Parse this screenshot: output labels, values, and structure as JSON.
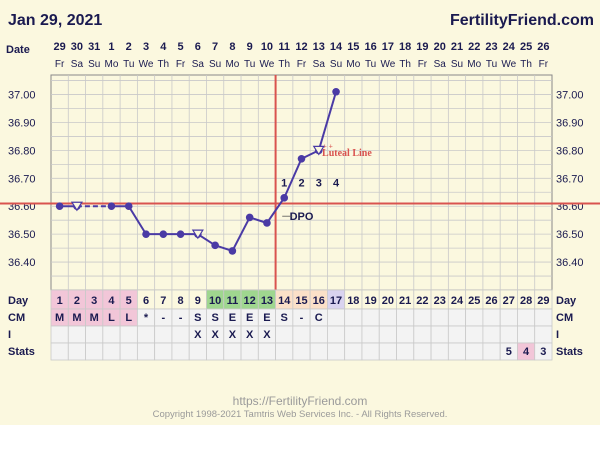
{
  "header": {
    "date": "Jan 29, 2021",
    "brand": "FertilityFriend.com"
  },
  "footer": {
    "url": "https://FertilityFriend.com",
    "copyright": "Copyright 1998-2021 Tamtris Web Services Inc. - All Rights Reserved."
  },
  "colors": {
    "line": "#4a3aa5",
    "coverline": "#d9534f",
    "grid": "#c9c9c9",
    "label": "#1a1a50",
    "pink": "#f2c6d8",
    "green": "#9fd68f",
    "peach": "#fbe0c8",
    "lilac": "#d9d3ef"
  },
  "chart_data": {
    "type": "line",
    "title": "",
    "ylabel": "",
    "xlabel": "",
    "ylim": [
      36.3,
      37.07
    ],
    "y_ticks": [
      "37.00",
      "36.90",
      "36.80",
      "36.70",
      "36.60",
      "36.50",
      "36.40"
    ],
    "row_labels": {
      "date": "Date",
      "day": "Day",
      "cm": "CM",
      "i": "I",
      "stats": "Stats"
    },
    "dates": [
      "29",
      "30",
      "31",
      "1",
      "2",
      "3",
      "4",
      "5",
      "6",
      "7",
      "8",
      "9",
      "10",
      "11",
      "12",
      "13",
      "14",
      "15",
      "16",
      "17",
      "18",
      "19",
      "20",
      "21",
      "22",
      "23",
      "24",
      "25",
      "26"
    ],
    "weekdays": [
      "Fr",
      "Sa",
      "Su",
      "Mo",
      "Tu",
      "We",
      "Th",
      "Fr",
      "Sa",
      "Su",
      "Mo",
      "Tu",
      "We",
      "Th",
      "Fr",
      "Sa",
      "Su",
      "Mo",
      "Tu",
      "We",
      "Th",
      "Fr",
      "Sa",
      "Su",
      "Mo",
      "Tu",
      "We",
      "Th",
      "Fr"
    ],
    "cycle_days": [
      "1",
      "2",
      "3",
      "4",
      "5",
      "6",
      "7",
      "8",
      "9",
      "10",
      "11",
      "12",
      "13",
      "14",
      "15",
      "16",
      "17",
      "18",
      "19",
      "20",
      "21",
      "22",
      "23",
      "24",
      "25",
      "26",
      "27",
      "28",
      "29"
    ],
    "day_highlight": [
      "pink",
      "pink",
      "pink",
      "pink",
      "pink",
      "",
      "",
      "",
      "",
      "green",
      "green",
      "green",
      "green",
      "peach",
      "peach",
      "peach",
      "lilac",
      "",
      "",
      "",
      "",
      "",
      "",
      "",
      "",
      "",
      "",
      "",
      ""
    ],
    "cm_row": [
      "M",
      "M",
      "M",
      "L",
      "L",
      "*",
      "-",
      "-",
      "S",
      "S",
      "E",
      "E",
      "E",
      "S",
      "-",
      "C",
      "",
      "",
      "",
      "",
      "",
      "",
      "",
      "",
      "",
      "",
      "",
      "",
      ""
    ],
    "cm_highlight": [
      "pink",
      "pink",
      "pink",
      "pink",
      "pink",
      "",
      "",
      "",
      "",
      "",
      "",
      "",
      "",
      "",
      "",
      "",
      "",
      "",
      "",
      "",
      "",
      "",
      "",
      "",
      "",
      "",
      "",
      "",
      ""
    ],
    "i_row": [
      "",
      "",
      "",
      "",
      "",
      "",
      "",
      "",
      "X",
      "X",
      "X",
      "X",
      "X",
      "",
      "",
      "",
      "",
      "",
      "",
      "",
      "",
      "",
      "",
      "",
      "",
      "",
      "",
      "",
      ""
    ],
    "stats_row": [
      "",
      "",
      "",
      "",
      "",
      "",
      "",
      "",
      "",
      "",
      "",
      "",
      "",
      "",
      "",
      "",
      "",
      "",
      "",
      "",
      "",
      "",
      "",
      "",
      "",
      "",
      "5",
      "4",
      "3"
    ],
    "stats_highlight": [
      "",
      "",
      "",
      "",
      "",
      "",
      "",
      "",
      "",
      "",
      "",
      "",
      "",
      "",
      "",
      "",
      "",
      "",
      "",
      "",
      "",
      "",
      "",
      "",
      "",
      "",
      "",
      "pink",
      ""
    ],
    "series": [
      {
        "values": [
          36.6,
          36.6,
          null,
          36.6,
          36.6,
          36.5,
          36.5,
          36.5,
          36.5,
          36.46,
          36.44,
          36.56,
          36.54,
          36.63,
          36.77,
          36.8,
          37.01,
          null,
          null,
          null,
          null,
          null,
          null,
          null,
          null,
          null,
          null,
          null,
          null
        ],
        "open_markers": [
          1,
          8,
          15
        ]
      }
    ],
    "coverline": 36.61,
    "ovulation_day_index": 12,
    "dpo_labels": [
      "1",
      "2",
      "3",
      "4"
    ],
    "dpo_text": "DPO",
    "luteal_text": "Luteal Line"
  }
}
